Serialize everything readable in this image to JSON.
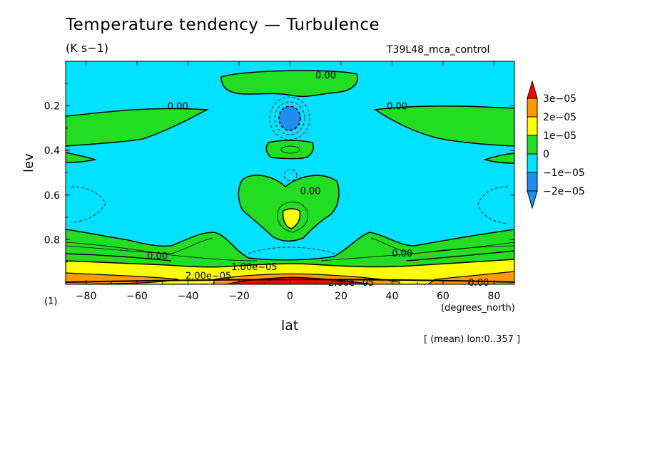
{
  "header": {
    "title": "Temperature tendency — Turbulence",
    "units": "(K s−1)",
    "run_id": "T39L48_mca_control"
  },
  "footer": {
    "x_units": "(degrees_north)",
    "y_units_marker": "(1)",
    "averaging_note": "[ (mean) lon:0..357 ]"
  },
  "colors": {
    "level_below_m2e5": "#1e8cf0",
    "level_m2e5_m1e5": "#1e8cf0",
    "level_m1e5_0": "#00e0ff",
    "level_0_1e5": "#22dd22",
    "level_1e5_2e5": "#ffff00",
    "level_2e5_3e5": "#ff9900",
    "level_above_3e5": "#ff0000"
  },
  "chart_data": {
    "type": "contour",
    "xlabel": "lat",
    "ylabel": "lev",
    "xlim": [
      -88,
      88
    ],
    "ylim": [
      1.0,
      0.0
    ],
    "x_ticks": [
      -80,
      -60,
      -40,
      -20,
      0,
      20,
      40,
      60,
      80
    ],
    "y_ticks": [
      0.2,
      0.4,
      0.6,
      0.8
    ],
    "x_tick_labels": [
      "−80",
      "−60",
      "−40",
      "−20",
      "0",
      "20",
      "40",
      "60",
      "80"
    ],
    "y_tick_labels": [
      "0.2",
      "0.4",
      "0.6",
      "0.8"
    ],
    "colorbar": {
      "levels": [
        -2e-05,
        -1e-05,
        0,
        1e-05,
        2e-05,
        3e-05
      ],
      "labels": [
        "−2e−05",
        "−1e−05",
        "0",
        "1e−05",
        "2e−05",
        "3e−05"
      ]
    },
    "contour_labels": [
      {
        "text": "0.00",
        "lat": 14,
        "lev": 0.06
      },
      {
        "text": "0.00",
        "lat": -44,
        "lev": 0.2
      },
      {
        "text": "0.00",
        "lat": 42,
        "lev": 0.2
      },
      {
        "text": "0.00",
        "lat": 8,
        "lev": 0.58
      },
      {
        "text": "0.00",
        "lat": -52,
        "lev": 0.87
      },
      {
        "text": "0.00",
        "lat": 44,
        "lev": 0.86
      },
      {
        "text": "1.00e−05",
        "lat": -14,
        "lev": 0.92
      },
      {
        "text": "2.00e−05",
        "lat": -32,
        "lev": 0.96
      },
      {
        "text": "2.00e−05",
        "lat": 24,
        "lev": 0.99
      },
      {
        "text": "0.00",
        "lat": 74,
        "lev": 0.99
      }
    ]
  }
}
